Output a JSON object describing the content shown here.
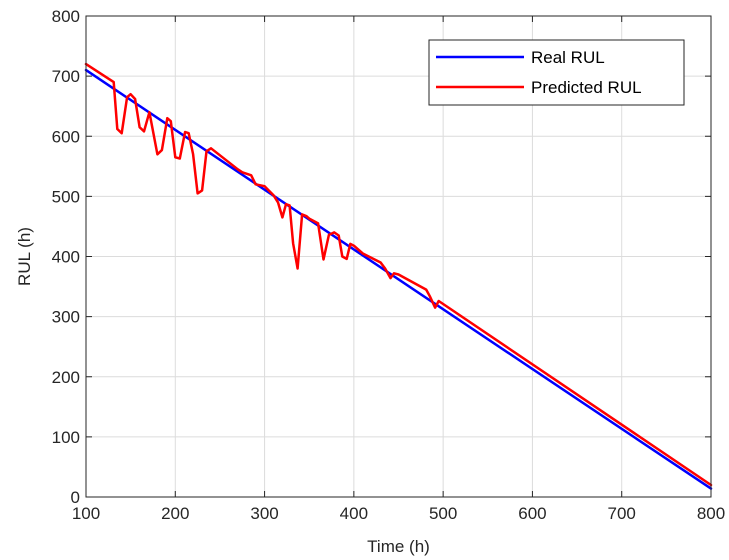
{
  "chart_data": {
    "type": "line",
    "title": "",
    "xlabel": "Time (h)",
    "ylabel": "RUL (h)",
    "xlim": [
      100,
      800
    ],
    "ylim": [
      0,
      800
    ],
    "xticks": [
      100,
      200,
      300,
      400,
      500,
      600,
      700,
      800
    ],
    "yticks": [
      0,
      100,
      200,
      300,
      400,
      500,
      600,
      700,
      800
    ],
    "grid": true,
    "legend_position": "top-right",
    "series": [
      {
        "name": "Real RUL",
        "color": "#0000ff",
        "x": [
          100,
          800
        ],
        "y": [
          710,
          14
        ]
      },
      {
        "name": "Predicted RUL",
        "color": "#ff0000",
        "x": [
          100,
          131,
          135,
          140,
          146,
          150,
          155,
          160,
          165,
          171,
          180,
          185,
          191,
          195,
          200,
          205,
          211,
          215,
          220,
          225,
          230,
          235,
          240,
          270,
          275,
          285,
          290,
          300,
          310,
          315,
          320,
          324,
          328,
          332,
          337,
          342,
          347,
          350,
          360,
          366,
          372,
          378,
          383,
          387,
          392,
          396,
          400,
          410,
          430,
          435,
          441,
          445,
          450,
          481,
          485,
          491,
          495,
          800
        ],
        "y": [
          720,
          690,
          612,
          605,
          665,
          670,
          662,
          615,
          608,
          640,
          570,
          577,
          630,
          625,
          565,
          563,
          607,
          605,
          570,
          505,
          510,
          575,
          580,
          545,
          540,
          535,
          520,
          517,
          502,
          490,
          465,
          487,
          485,
          422,
          380,
          470,
          467,
          463,
          455,
          395,
          436,
          440,
          435,
          400,
          396,
          421,
          418,
          405,
          390,
          380,
          364,
          372,
          370,
          345,
          334,
          315,
          326,
          20
        ]
      }
    ]
  }
}
